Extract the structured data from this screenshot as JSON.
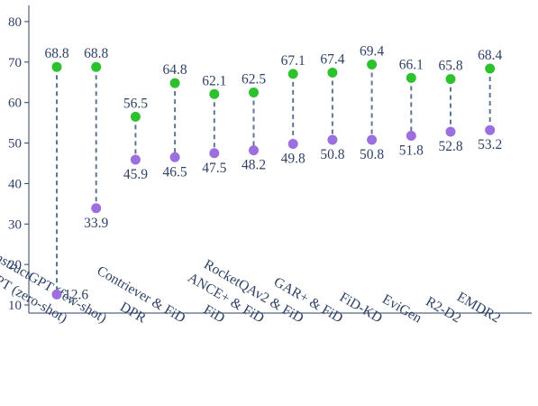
{
  "chart_data": {
    "type": "dumbbell",
    "title": "",
    "xlabel": "",
    "ylabel": "",
    "ylim": [
      8,
      84
    ],
    "yticks": [
      10,
      20,
      30,
      40,
      50,
      60,
      70,
      80
    ],
    "grid": false,
    "categories": [
      "InstructGPT (zero-shot)",
      "InstructGPT (few-shot)",
      "DPR",
      "Contriever & FiD",
      "FiD",
      "ANCE+ & FiD",
      "RocketQAv2 & FiD",
      "GAR+ & FiD",
      "FiD-KD",
      "EviGen",
      "R2-D2",
      "EMDR2"
    ],
    "series": [
      {
        "values": [
          68.8,
          68.8,
          56.5,
          64.8,
          62.1,
          62.5,
          67.1,
          67.4,
          69.4,
          66.1,
          65.8,
          68.4
        ],
        "labels": [
          "68.8",
          "68.8",
          "56.5",
          "64.8",
          "62.1",
          "62.5",
          "67.1",
          "67.4",
          "69.4",
          "66.1",
          "65.8",
          "68.4"
        ],
        "color": "#2ec12e"
      },
      {
        "values": [
          12.6,
          33.9,
          45.9,
          46.5,
          47.5,
          48.2,
          49.8,
          50.8,
          50.8,
          51.8,
          52.8,
          53.2
        ],
        "labels": [
          "12.6",
          "33.9",
          "45.9",
          "46.5",
          "47.5",
          "48.2",
          "49.8",
          "50.8",
          "50.8",
          "51.8",
          "52.8",
          "53.2"
        ],
        "color": "#9b6fe0"
      }
    ],
    "connector_color": "#5f7590",
    "axis_color": "#2f4266"
  }
}
